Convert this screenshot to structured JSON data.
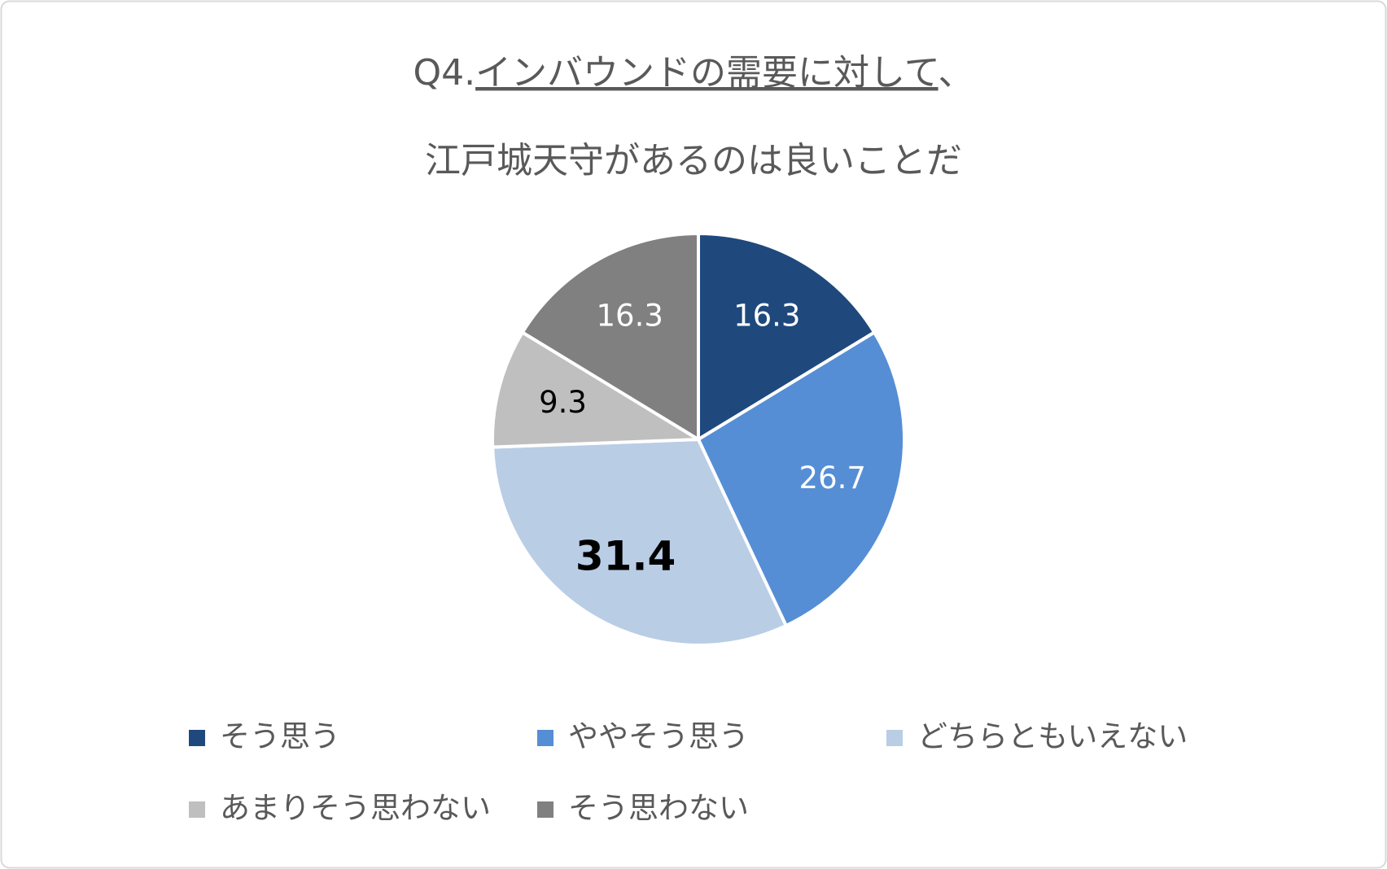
{
  "chart_data": {
    "type": "pie",
    "title": [
      [
        "Q4.",
        "インバウンドの需要に対して",
        "、"
      ],
      [
        "江戸城天守があるのは良いことだ"
      ]
    ],
    "categories": [
      "そう思う",
      "ややそう思う",
      "どちらともいえない",
      "あまりそう思わない",
      "そう思わない"
    ],
    "values": [
      16.3,
      26.7,
      31.4,
      9.3,
      16.3
    ],
    "colors": [
      "#1f497d",
      "#558ed5",
      "#b9cde5",
      "#bfbfbf",
      "#808080"
    ],
    "label_colors": [
      "#ffffff",
      "#ffffff",
      "#000000",
      "#000000",
      "#ffffff"
    ],
    "label_bold": [
      false,
      false,
      true,
      false,
      false
    ],
    "legend": "bottom"
  }
}
